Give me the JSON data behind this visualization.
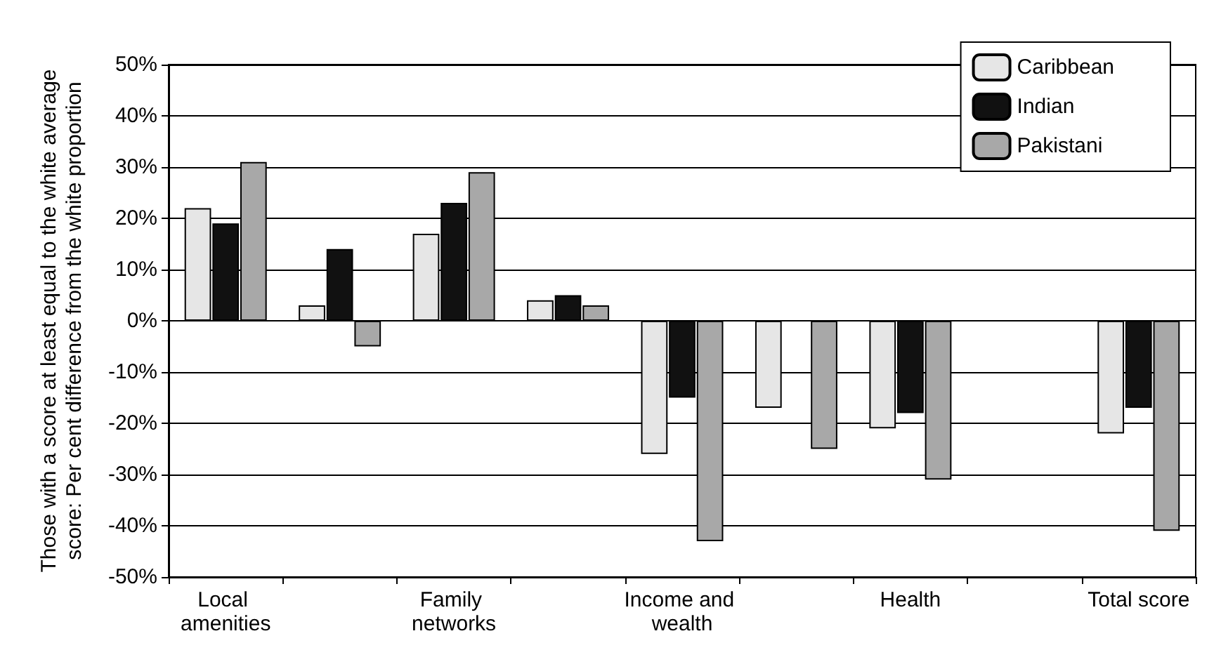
{
  "chart_data": {
    "type": "bar",
    "ylabel": "Those with a score at least equal to the white average\nscore: Per cent difference from the white proportion",
    "categories": [
      "Local amenities",
      null,
      "Family networks",
      null,
      "Income and wealth",
      null,
      "Health",
      null,
      "Total score"
    ],
    "series": [
      {
        "name": "Caribbean",
        "color": "#e6e6e6",
        "values": [
          22,
          3,
          17,
          4,
          -26,
          -17,
          -21,
          null,
          -22
        ]
      },
      {
        "name": "Indian",
        "color": "#111111",
        "values": [
          19,
          14,
          23,
          5,
          -15,
          null,
          -18,
          null,
          -17
        ]
      },
      {
        "name": "Pakistani",
        "color": "#a8a8a8",
        "values": [
          31,
          -5,
          29,
          3,
          -43,
          -25,
          -31,
          null,
          -41
        ]
      }
    ],
    "ylim": [
      -50,
      50
    ],
    "yticks": [
      {
        "value": -50,
        "label": "-50%"
      },
      {
        "value": -40,
        "label": "-40%"
      },
      {
        "value": -30,
        "label": "-30%"
      },
      {
        "value": -20,
        "label": "-20%"
      },
      {
        "value": -10,
        "label": "-10%"
      },
      {
        "value": 0,
        "label": "0%"
      },
      {
        "value": 10,
        "label": "10%"
      },
      {
        "value": 20,
        "label": "20%"
      },
      {
        "value": 30,
        "label": "30%"
      },
      {
        "value": 40,
        "label": "40%"
      },
      {
        "value": 50,
        "label": "50%"
      }
    ],
    "grid": "y",
    "legend": "top right"
  }
}
